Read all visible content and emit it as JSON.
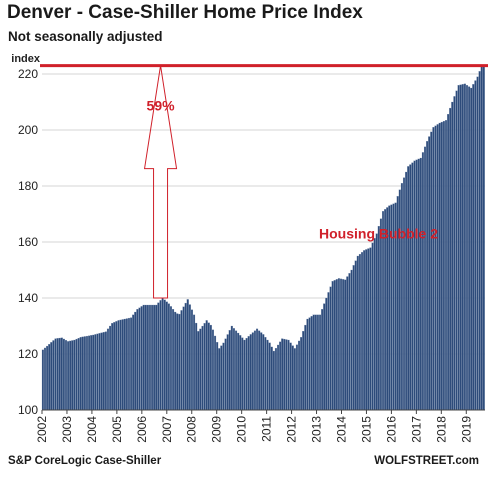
{
  "header": {
    "title": "Denver  - Case-Shiller Home Price Index",
    "subtitle": "Not seasonally adjusted"
  },
  "footer": {
    "source": "S&P CoreLogic Case-Shiller",
    "brand": "WOLFSTREET.com"
  },
  "colors": {
    "bar": "#2d4b7a",
    "bar_edge": "#7f93b3",
    "accent": "#d0202a",
    "grid": "#d4d4d4"
  },
  "chart_data": {
    "type": "bar",
    "title": "Denver  - Case-Shiller Home Price Index",
    "subtitle": "Not seasonally adjusted",
    "ylabel": "index",
    "xlabel": "",
    "ylim": [
      100,
      225
    ],
    "yticks": [
      100,
      120,
      140,
      160,
      180,
      200,
      220
    ],
    "xlim": [
      2002.0,
      2019.75
    ],
    "xticks": [
      "2002",
      "2003",
      "2004",
      "2005",
      "2006",
      "2007",
      "2008",
      "2009",
      "2010",
      "2011",
      "2012",
      "2013",
      "2014",
      "2015",
      "2016",
      "2017",
      "2018",
      "2019"
    ],
    "grid": true,
    "frequency": "monthly",
    "start": "2002-01",
    "end": "2019-07",
    "anchors": [
      {
        "t": 2002.0,
        "v": 121.5
      },
      {
        "t": 2002.25,
        "v": 123.5
      },
      {
        "t": 2002.5,
        "v": 125.5
      },
      {
        "t": 2002.75,
        "v": 125.8
      },
      {
        "t": 2003.0,
        "v": 124.5
      },
      {
        "t": 2003.25,
        "v": 125.0
      },
      {
        "t": 2003.5,
        "v": 126.0
      },
      {
        "t": 2004.0,
        "v": 126.8
      },
      {
        "t": 2004.5,
        "v": 128.0
      },
      {
        "t": 2004.75,
        "v": 131.0
      },
      {
        "t": 2005.0,
        "v": 132.0
      },
      {
        "t": 2005.5,
        "v": 133.0
      },
      {
        "t": 2005.75,
        "v": 136.0
      },
      {
        "t": 2006.0,
        "v": 137.5
      },
      {
        "t": 2006.5,
        "v": 137.5
      },
      {
        "t": 2006.75,
        "v": 140.0
      },
      {
        "t": 2007.0,
        "v": 138.0
      },
      {
        "t": 2007.25,
        "v": 135.0
      },
      {
        "t": 2007.4,
        "v": 134.0
      },
      {
        "t": 2007.75,
        "v": 139.5
      },
      {
        "t": 2008.0,
        "v": 134.0
      },
      {
        "t": 2008.17,
        "v": 128.0
      },
      {
        "t": 2008.5,
        "v": 132.0
      },
      {
        "t": 2008.7,
        "v": 130.0
      },
      {
        "t": 2009.0,
        "v": 122.0
      },
      {
        "t": 2009.17,
        "v": 124.0
      },
      {
        "t": 2009.5,
        "v": 130.0
      },
      {
        "t": 2009.75,
        "v": 127.5
      },
      {
        "t": 2010.0,
        "v": 125.0
      },
      {
        "t": 2010.25,
        "v": 127.0
      },
      {
        "t": 2010.5,
        "v": 129.0
      },
      {
        "t": 2010.75,
        "v": 127.0
      },
      {
        "t": 2011.0,
        "v": 124.0
      },
      {
        "t": 2011.17,
        "v": 121.0
      },
      {
        "t": 2011.5,
        "v": 125.5
      },
      {
        "t": 2011.75,
        "v": 125.0
      },
      {
        "t": 2012.0,
        "v": 122.0
      },
      {
        "t": 2012.25,
        "v": 126.0
      },
      {
        "t": 2012.5,
        "v": 132.5
      },
      {
        "t": 2012.75,
        "v": 134.0
      },
      {
        "t": 2013.0,
        "v": 134.0
      },
      {
        "t": 2013.25,
        "v": 140.0
      },
      {
        "t": 2013.5,
        "v": 146.0
      },
      {
        "t": 2013.75,
        "v": 147.0
      },
      {
        "t": 2014.0,
        "v": 146.5
      },
      {
        "t": 2014.25,
        "v": 150.0
      },
      {
        "t": 2014.5,
        "v": 155.0
      },
      {
        "t": 2014.75,
        "v": 157.0
      },
      {
        "t": 2015.0,
        "v": 158.0
      },
      {
        "t": 2015.25,
        "v": 163.0
      },
      {
        "t": 2015.5,
        "v": 171.0
      },
      {
        "t": 2015.75,
        "v": 173.0
      },
      {
        "t": 2016.0,
        "v": 174.0
      },
      {
        "t": 2016.25,
        "v": 181.0
      },
      {
        "t": 2016.5,
        "v": 187.0
      },
      {
        "t": 2016.75,
        "v": 189.0
      },
      {
        "t": 2017.0,
        "v": 190.0
      },
      {
        "t": 2017.25,
        "v": 196.0
      },
      {
        "t": 2017.5,
        "v": 201.0
      },
      {
        "t": 2017.75,
        "v": 202.5
      },
      {
        "t": 2018.0,
        "v": 203.5
      },
      {
        "t": 2018.25,
        "v": 210.0
      },
      {
        "t": 2018.5,
        "v": 216.0
      },
      {
        "t": 2018.75,
        "v": 216.5
      },
      {
        "t": 2019.0,
        "v": 215.0
      },
      {
        "t": 2019.25,
        "v": 219.0
      },
      {
        "t": 2019.42,
        "v": 223.0
      },
      {
        "t": 2019.58,
        "v": 223.0
      }
    ],
    "reference_line": {
      "value": 223.0,
      "color": "#d0202a"
    },
    "annotations": [
      {
        "text": "59%",
        "kind": "arrow",
        "from_value": 140.0,
        "to_value": 223.0,
        "at_year": 2006.75
      },
      {
        "text": "Housing Bubble 2",
        "kind": "label",
        "at_year": 2013.1,
        "value": 163.0
      }
    ]
  }
}
